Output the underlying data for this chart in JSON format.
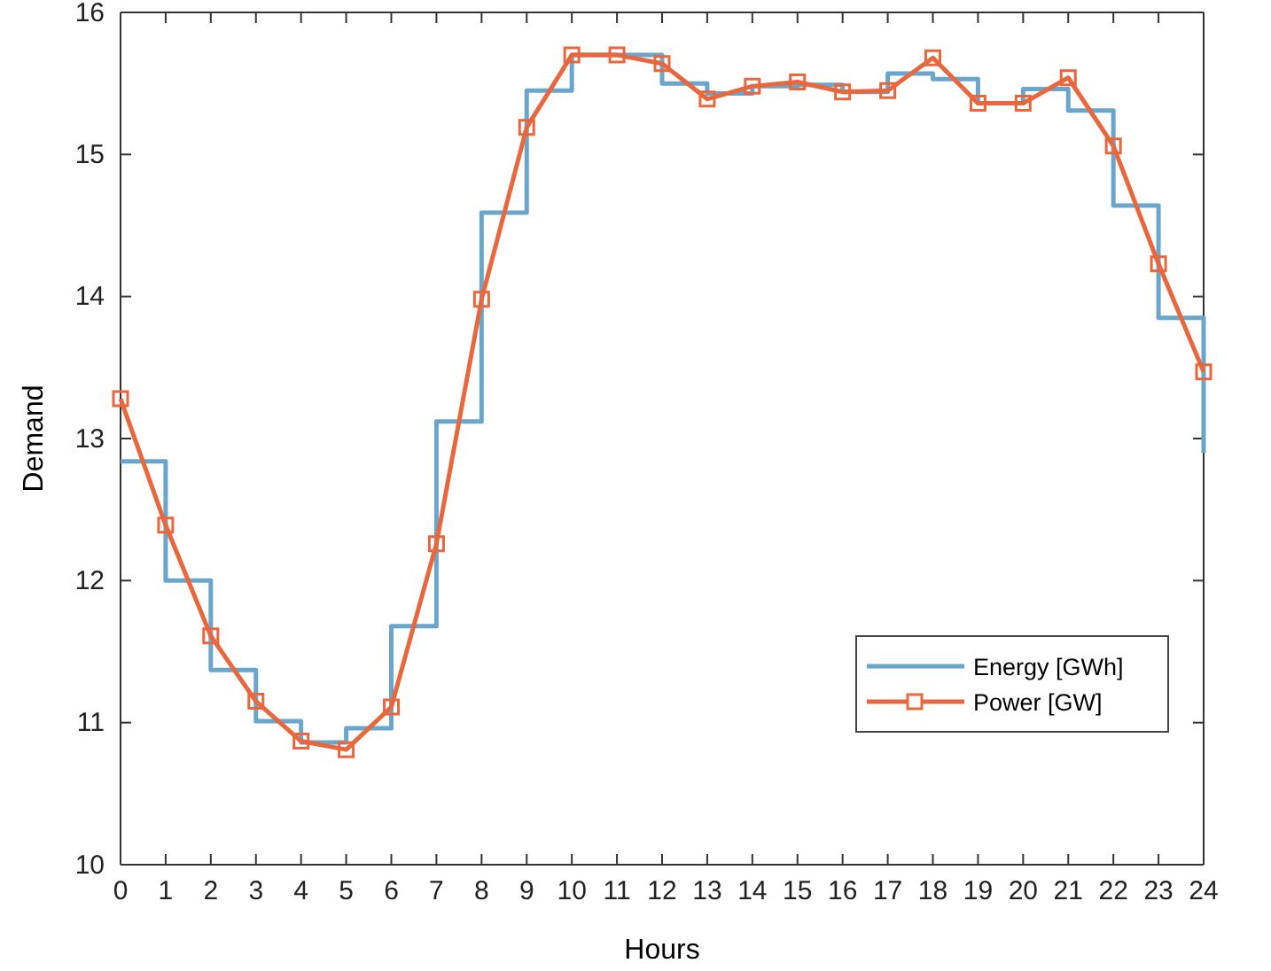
{
  "chart_data": {
    "type": "line",
    "xlabel": "Hours",
    "ylabel": "Demand",
    "x": [
      0,
      1,
      2,
      3,
      4,
      5,
      6,
      7,
      8,
      9,
      10,
      11,
      12,
      13,
      14,
      15,
      16,
      17,
      18,
      19,
      20,
      21,
      22,
      23,
      24
    ],
    "xlim": [
      0,
      24
    ],
    "xticks": [
      0,
      1,
      2,
      3,
      4,
      5,
      6,
      7,
      8,
      9,
      10,
      11,
      12,
      13,
      14,
      15,
      16,
      17,
      18,
      19,
      20,
      21,
      22,
      23,
      24
    ],
    "ylim": [
      10,
      16
    ],
    "yticks": [
      10,
      11,
      12,
      13,
      14,
      15,
      16
    ],
    "grid": false,
    "legend": "bottom right",
    "series": [
      {
        "name": "Energy [GWh]",
        "type": "step",
        "color": "#6aa6cc",
        "marker": "none",
        "values": [
          12.84,
          12.0,
          11.37,
          11.01,
          10.86,
          10.96,
          11.68,
          13.12,
          14.59,
          15.45,
          15.7,
          15.7,
          15.5,
          15.43,
          15.48,
          15.49,
          15.44,
          15.57,
          15.53,
          15.36,
          15.46,
          15.31,
          14.64,
          13.85,
          12.9
        ]
      },
      {
        "name": "Power [GW]",
        "color": "#e8673d",
        "marker": "square",
        "values": [
          13.28,
          12.39,
          11.61,
          11.15,
          10.87,
          10.81,
          11.11,
          12.26,
          13.98,
          15.19,
          15.7,
          15.7,
          15.64,
          15.39,
          15.48,
          15.51,
          15.44,
          15.45,
          15.68,
          15.36,
          15.36,
          15.54,
          15.06,
          14.23,
          13.47
        ]
      }
    ]
  }
}
